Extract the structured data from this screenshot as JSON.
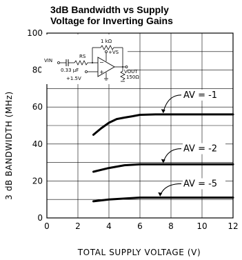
{
  "chart_data": {
    "type": "line",
    "title": [
      "3dB Bandwidth vs Supply",
      "Voltage for Inverting Gains"
    ],
    "xlabel": "TOTAL SUPPLY VOLTAGE (V)",
    "ylabel": "3 dB BANDWIDTH (MHz)",
    "xlim": [
      0,
      12
    ],
    "ylim": [
      0,
      100
    ],
    "xticks": [
      "0",
      "2",
      "4",
      "6",
      "8",
      "10",
      "12"
    ],
    "yticks": [
      "0",
      "20",
      "40",
      "60",
      "80",
      "100"
    ],
    "grid": true,
    "series": [
      {
        "name": "AV = -1",
        "x": [
          3,
          3.5,
          4,
          4.5,
          5,
          5.5,
          6,
          7,
          8,
          10,
          12
        ],
        "y": [
          45,
          48.5,
          51.5,
          53.5,
          54.3,
          55,
          55.8,
          56,
          56,
          56,
          56
        ]
      },
      {
        "name": "AV = -2",
        "x": [
          3,
          4,
          5,
          6,
          7,
          8,
          10,
          12
        ],
        "y": [
          25,
          27,
          28.5,
          29,
          29,
          29,
          29,
          29
        ]
      },
      {
        "name": "AV = -5",
        "x": [
          3,
          4,
          5,
          6,
          8,
          10,
          12
        ],
        "y": [
          9,
          10,
          10.5,
          11,
          11,
          11,
          11
        ]
      }
    ],
    "annotations": [
      {
        "label": "AV = -1",
        "series": 0
      },
      {
        "label": "AV = -2",
        "series": 1
      },
      {
        "label": "AV = -5",
        "series": 2
      }
    ]
  },
  "schematic": {
    "labels": {
      "rf": "1 kΩ",
      "vplus": "+VS",
      "vin": "VIN",
      "rs": "RS",
      "cap": "0.33 µF",
      "bias": "+1.5V",
      "vout": "VOUT",
      "rl": "150Ω"
    }
  }
}
